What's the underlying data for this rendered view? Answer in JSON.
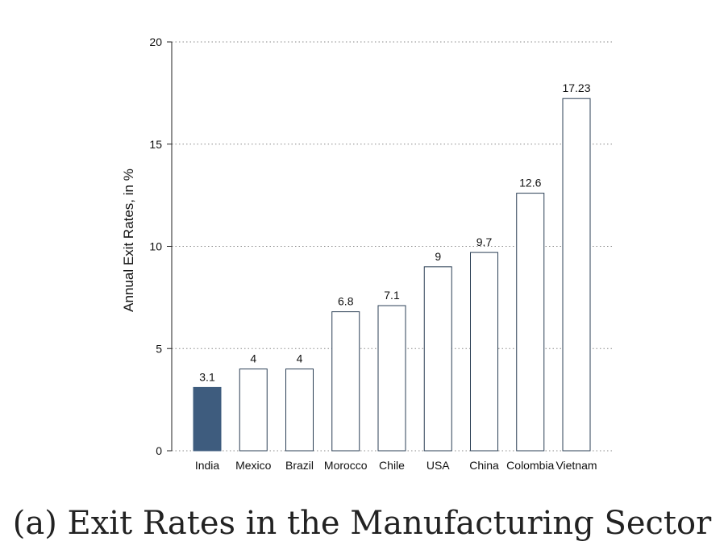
{
  "caption": "(a) Exit Rates in the Manufacturing Sector",
  "chart_data": {
    "type": "bar",
    "categories": [
      "India",
      "Mexico",
      "Brazil",
      "Morocco",
      "Chile",
      "USA",
      "China",
      "Colombia",
      "Vietnam"
    ],
    "values": [
      3.1,
      4,
      4,
      6.8,
      7.1,
      9,
      9.7,
      12.6,
      17.23
    ],
    "value_labels": [
      "3.1",
      "4",
      "4",
      "6.8",
      "7.1",
      "9",
      "9.7",
      "12.6",
      "17.23"
    ],
    "title": "",
    "xlabel": "",
    "ylabel": "Annual Exit Rates, in %",
    "ylim": [
      0,
      20
    ],
    "yticks": [
      "0",
      "5",
      "10",
      "15",
      "20"
    ],
    "grid": "horizontal dotted",
    "highlight_category": "India",
    "colors": {
      "highlight": "#3e5c7e",
      "bar_fill": "#ffffff",
      "bar_edge": "#2b3f55",
      "grid": "#8a8a8a"
    }
  }
}
